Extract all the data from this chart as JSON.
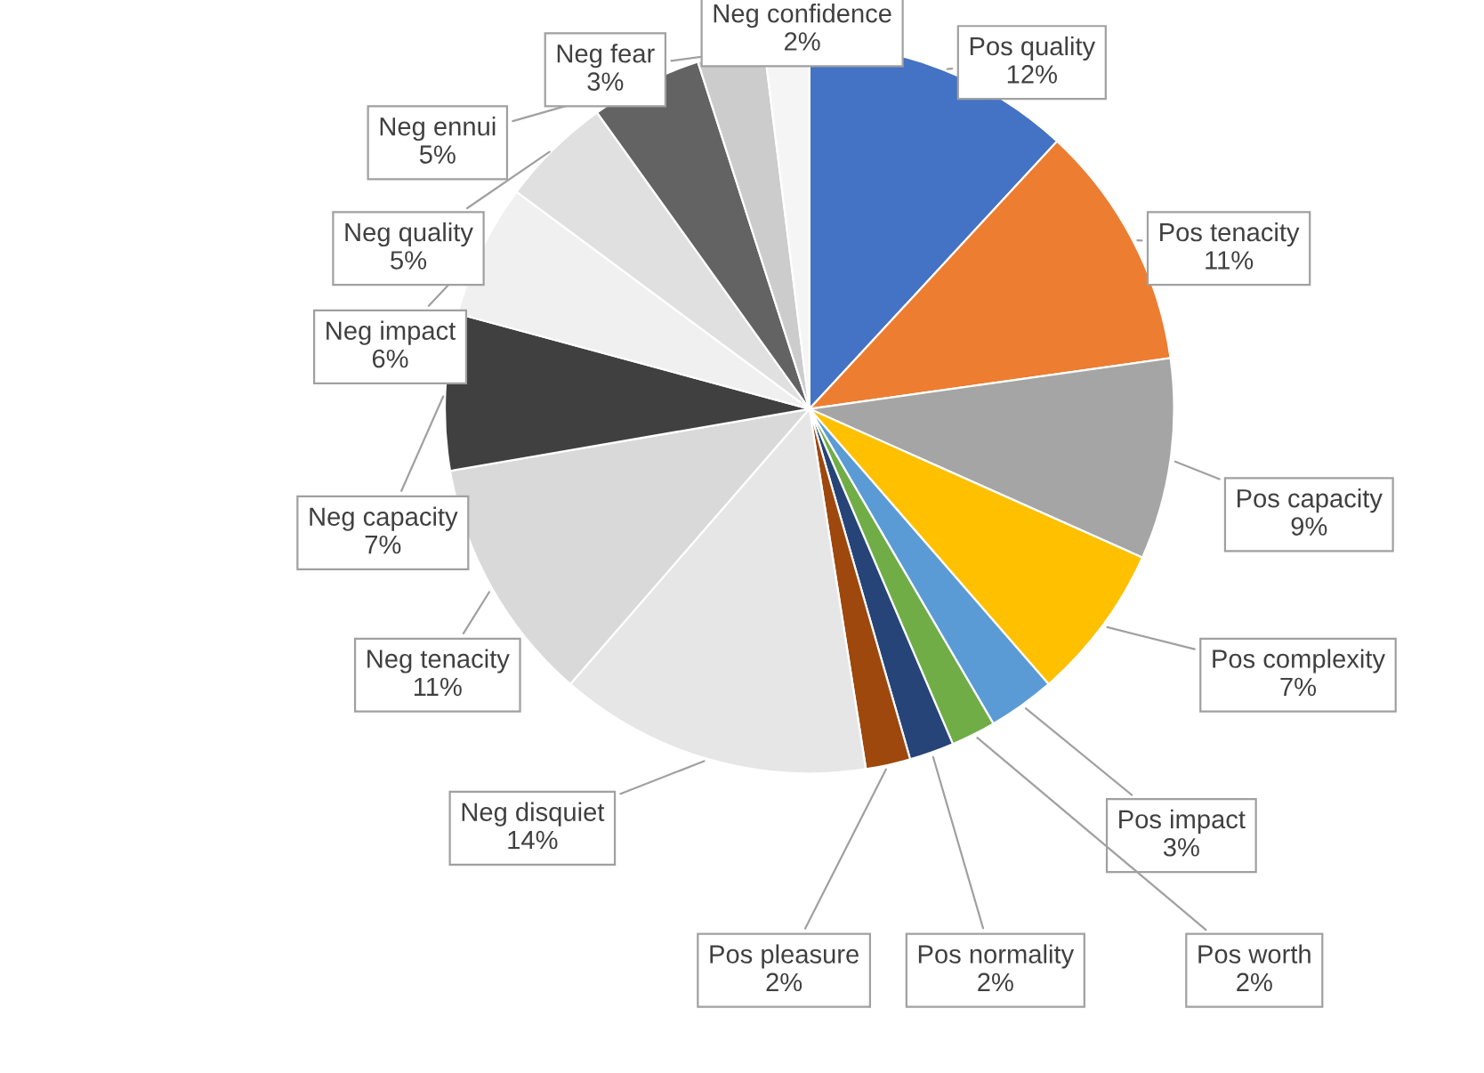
{
  "chart_data": {
    "type": "pie",
    "categories": [
      "Pos quality",
      "Pos tenacity",
      "Pos capacity",
      "Pos complexity",
      "Pos impact",
      "Pos worth",
      "Pos normality",
      "Pos pleasure",
      "Neg disquiet",
      "Neg tenacity",
      "Neg capacity",
      "Neg impact",
      "Neg quality",
      "Neg ennui",
      "Neg fear",
      "Neg confidence"
    ],
    "values": [
      12,
      11,
      9,
      7,
      3,
      2,
      2,
      2,
      14,
      11,
      7,
      6,
      5,
      5,
      3,
      2
    ],
    "value_labels": [
      "12%",
      "11%",
      "9%",
      "7%",
      "3%",
      "2%",
      "2%",
      "2%",
      "14%",
      "11%",
      "7%",
      "6%",
      "5%",
      "5%",
      "3%",
      "2%"
    ],
    "colors": [
      "#4472c4",
      "#ed7d31",
      "#a5a5a5",
      "#ffc000",
      "#5b9bd5",
      "#70ad47",
      "#264478",
      "#9e480e",
      "#e6e6e6",
      "#d9d9d9",
      "#404040",
      "#f0f0f0",
      "#e0e0e0",
      "#636363",
      "#cccccc",
      "#f5f5f5"
    ],
    "legend": false
  }
}
